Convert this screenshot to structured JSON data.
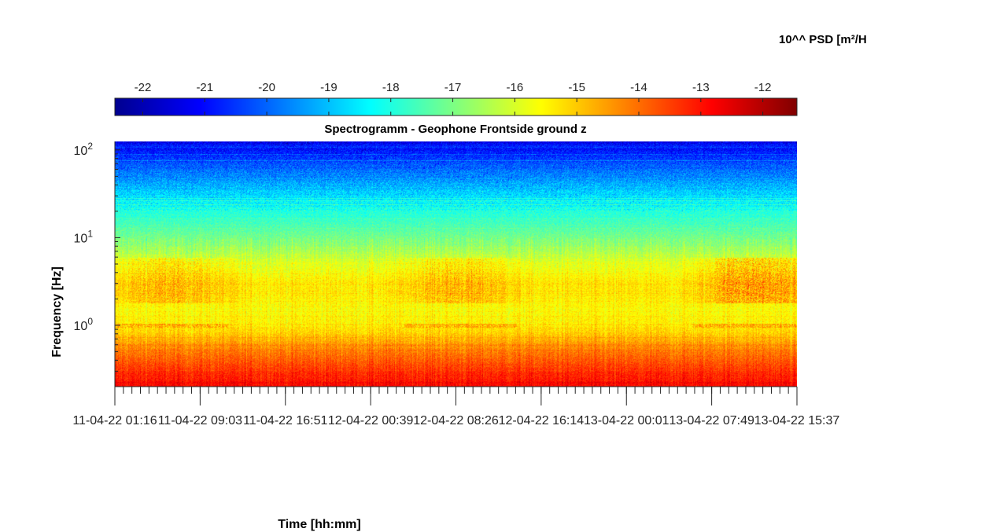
{
  "chart_data": {
    "type": "heatmap",
    "title": "Spectrogramm - Geophone Frontside ground z",
    "xlabel": "Time [hh:mm]",
    "ylabel": "Frequency [Hz]",
    "colorbar": {
      "label": "10^^ PSD [m²/H",
      "ticks": [
        -22,
        -21,
        -20,
        -19,
        -18,
        -17,
        -16,
        -15,
        -14,
        -13,
        -12
      ],
      "range": [
        -22.45,
        -11.45
      ],
      "colormap": "jet",
      "position": "top"
    },
    "x_ticks": [
      "11-04-22 01:16",
      "11-04-22 09:03",
      "11-04-22 16:51",
      "12-04-22 00:39",
      "12-04-22 08:26",
      "12-04-22 16:14",
      "13-04-22 00:01",
      "13-04-22 07:49",
      "13-04-22 15:37"
    ],
    "xlim": [
      "11-04-22 01:16",
      "13-04-22 15:37"
    ],
    "y_scale": "log",
    "y_ticks": [
      {
        "base": "10",
        "exp": "0",
        "value": 1
      },
      {
        "base": "10",
        "exp": "1",
        "value": 10
      },
      {
        "base": "10",
        "exp": "2",
        "value": 100
      }
    ],
    "ylim": [
      0.2,
      125
    ],
    "psd_profile": {
      "frequency_hz": [
        0.2,
        0.3,
        0.5,
        0.8,
        1.0,
        1.5,
        3,
        5,
        8,
        12,
        20,
        35,
        60,
        100,
        125
      ],
      "log10_psd": [
        -12.8,
        -13.4,
        -14.1,
        -15.0,
        -15.4,
        -15.6,
        -15.3,
        -15.9,
        -16.7,
        -17.3,
        -18.0,
        -18.9,
        -19.9,
        -20.9,
        -21.3
      ]
    },
    "grid": false
  }
}
